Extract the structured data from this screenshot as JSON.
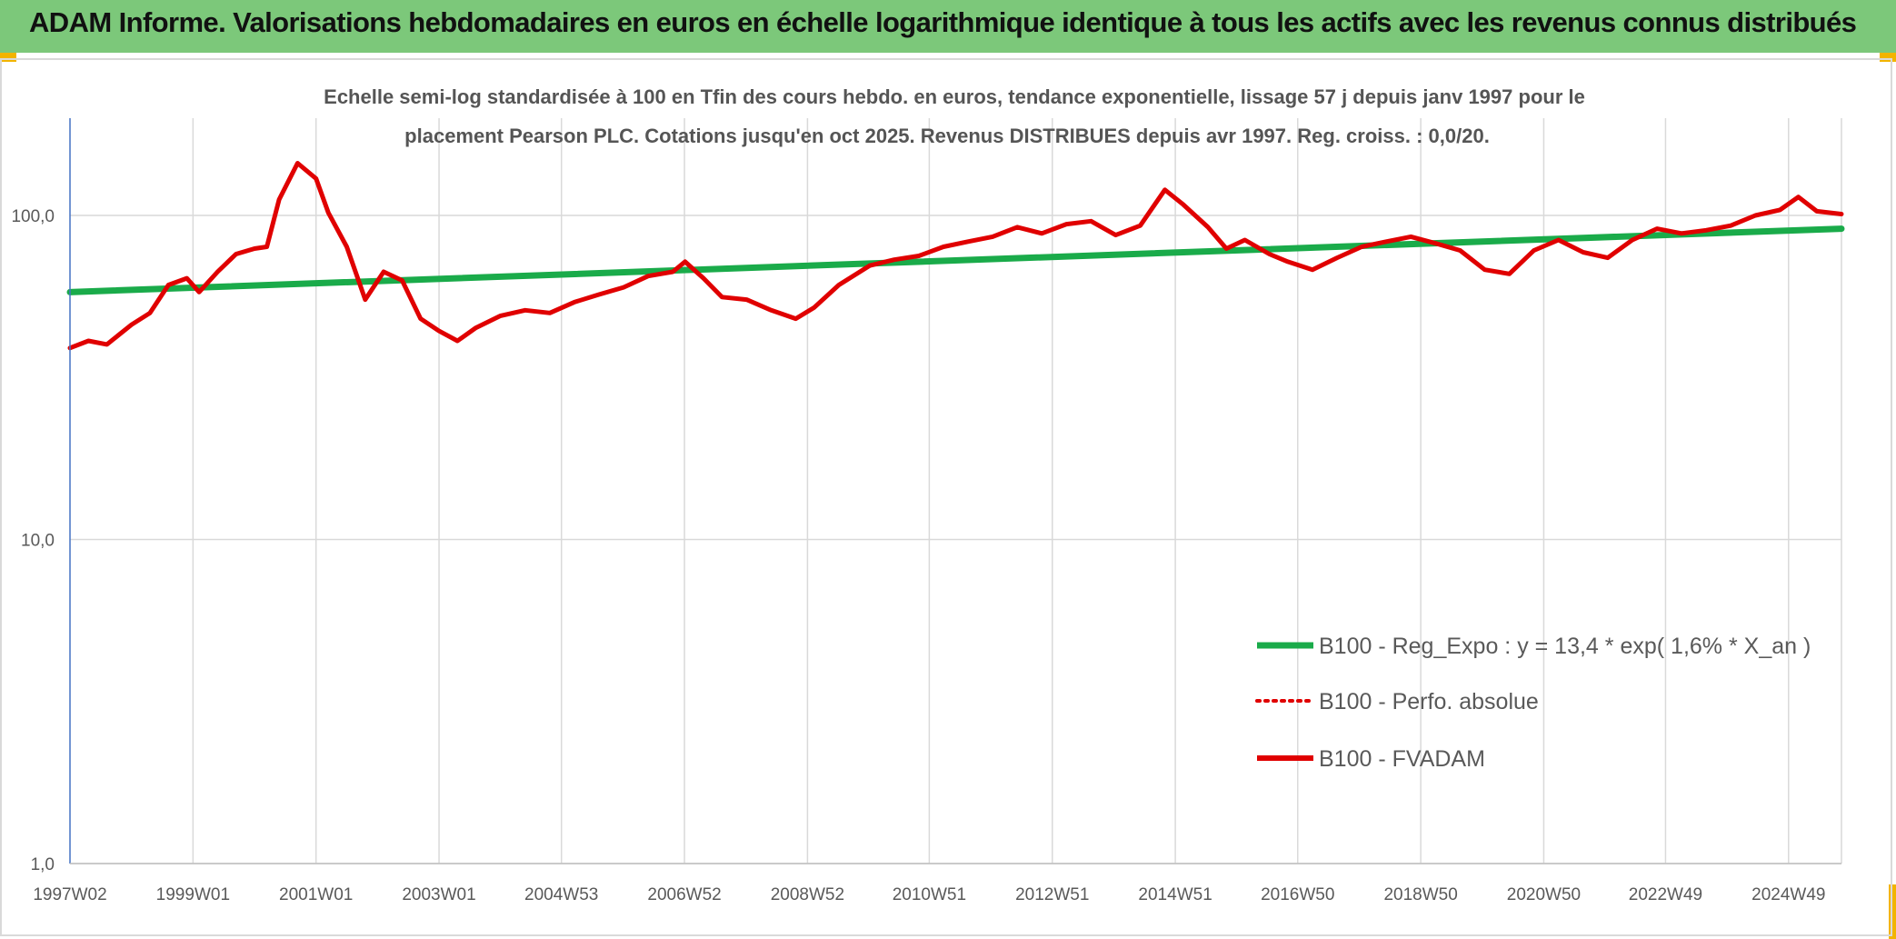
{
  "banner": {
    "title": "ADAM Informe. Valorisations hebdomadaires en euros en échelle logarithmique identique à tous les actifs avec les revenus connus distribués"
  },
  "colors": {
    "banner_bg": "#7cc87a",
    "corner_accent": "#f2b400",
    "trend_line": "#1aab4a",
    "fvadam_line": "#e00000",
    "grid": "#d9d9d9",
    "axis_text": "#595959"
  },
  "chart_data": {
    "type": "line",
    "title_lines": [
      "Echelle semi-log standardisée à 100 en Tfin des cours hebdo. en euros, tendance exponentielle, lissage 57 j depuis janv 1997 pour le",
      "placement Pearson PLC. Cotations jusqu'en oct 2025. Revenus DISTRIBUES depuis avr 1997. Reg. croiss. : 0,0/20."
    ],
    "y_scale": "log",
    "ylim": [
      1,
      200
    ],
    "y_ticks": [
      1,
      10,
      100
    ],
    "y_tick_labels": [
      "1,0",
      "10,0",
      "100,0"
    ],
    "x_range": [
      1997.0,
      2025.8
    ],
    "x_ticks": [
      1997.0,
      1999.0,
      2001.0,
      2003.0,
      2004.99,
      2006.99,
      2008.99,
      2010.97,
      2012.97,
      2014.97,
      2016.96,
      2018.96,
      2020.96,
      2022.94,
      2024.94
    ],
    "x_tick_labels": [
      "1997W02",
      "1999W01",
      "2001W01",
      "2003W01",
      "2004W53",
      "2006W52",
      "2008W52",
      "2010W51",
      "2012W51",
      "2014W51",
      "2016W50",
      "2018W50",
      "2020W50",
      "2022W49",
      "2024W49"
    ],
    "grid": "vertical and horizontal",
    "legend_position": "bottom-right",
    "series": [
      {
        "name": "B100 - Reg_Expo : y = 13,4 * exp( 1,6% *  X_an )",
        "style": "solid-thick",
        "color": "#1aab4a",
        "x": [
          1997.0,
          2025.8
        ],
        "y": [
          58,
          91
        ]
      },
      {
        "name": "B100 - Perfo. absolue",
        "style": "dotted",
        "color": "#e00000",
        "x": [],
        "y": []
      },
      {
        "name": "B100 - FVADAM",
        "style": "solid",
        "color": "#e00000",
        "x": [
          1997.0,
          1997.3,
          1997.6,
          1998.0,
          1998.3,
          1998.6,
          1998.9,
          1999.1,
          1999.4,
          1999.7,
          2000.0,
          2000.2,
          2000.4,
          2000.7,
          2001.0,
          2001.2,
          2001.5,
          2001.8,
          2002.1,
          2002.4,
          2002.7,
          2003.0,
          2003.3,
          2003.6,
          2004.0,
          2004.4,
          2004.8,
          2005.2,
          2005.6,
          2006.0,
          2006.4,
          2006.8,
          2007.0,
          2007.3,
          2007.6,
          2008.0,
          2008.4,
          2008.8,
          2009.1,
          2009.5,
          2010.0,
          2010.4,
          2010.8,
          2011.2,
          2011.6,
          2012.0,
          2012.4,
          2012.8,
          2013.2,
          2013.6,
          2014.0,
          2014.4,
          2014.8,
          2015.1,
          2015.5,
          2015.8,
          2016.1,
          2016.5,
          2016.8,
          2017.2,
          2017.6,
          2018.0,
          2018.4,
          2018.8,
          2019.2,
          2019.6,
          2020.0,
          2020.4,
          2020.8,
          2021.2,
          2021.6,
          2022.0,
          2022.4,
          2022.8,
          2023.2,
          2023.6,
          2024.0,
          2024.4,
          2024.8,
          2025.1,
          2025.4,
          2025.8
        ],
        "y": [
          39,
          41,
          40,
          46,
          50,
          61,
          64,
          58,
          67,
          76,
          79,
          80,
          112,
          145,
          130,
          102,
          80,
          55,
          67,
          63,
          48,
          44,
          41,
          45,
          49,
          51,
          50,
          54,
          57,
          60,
          65,
          67,
          72,
          64,
          56,
          55,
          51,
          48,
          52,
          61,
          70,
          73,
          75,
          80,
          83,
          86,
          92,
          88,
          94,
          96,
          87,
          93,
          120,
          108,
          92,
          79,
          84,
          76,
          72,
          68,
          74,
          80,
          83,
          86,
          82,
          78,
          68,
          66,
          78,
          84,
          77,
          74,
          84,
          91,
          88,
          90,
          93,
          100,
          104,
          114,
          103,
          101
        ]
      }
    ]
  }
}
